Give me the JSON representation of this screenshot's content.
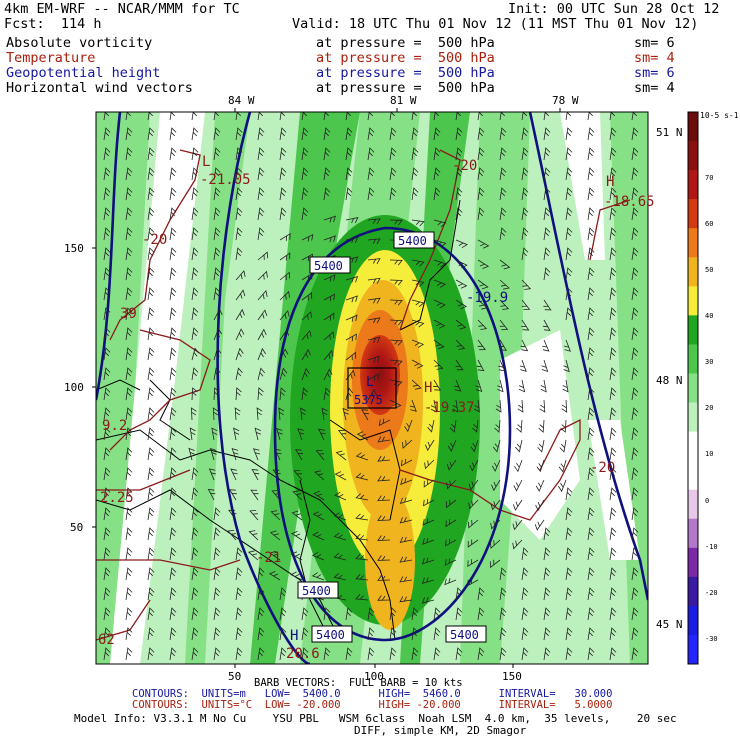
{
  "header": {
    "model": "4km EM-WRF -- NCAR/MMM for TC",
    "init": "Init: 00 UTC Sun 28 Oct 12",
    "fcst": "Fcst:  114 h",
    "valid": "Valid: 18 UTC Thu 01 Nov 12 (11 MST Thu 01 Nov 12)"
  },
  "fields": [
    {
      "name": "Absolute vorticity",
      "level": "at pressure =  500 hPa",
      "sm": "sm= 6",
      "color": "#000000"
    },
    {
      "name": "Temperature",
      "level": "at pressure =  500 hPa",
      "sm": "sm= 4",
      "color": "#a8200d"
    },
    {
      "name": "Geopotential height",
      "level": "at pressure =  500 hPa",
      "sm": "sm= 6",
      "color": "#1515a0"
    },
    {
      "name": "Horizontal wind vectors",
      "level": "at pressure =  500 hPa",
      "sm": "sm= 4",
      "color": "#000000"
    }
  ],
  "axes": {
    "top_labels": [
      "84 W",
      "81 W",
      "78 W"
    ],
    "right_labels": [
      "51 N",
      "48 N",
      "45 N"
    ],
    "left_ticks": [
      "150",
      "100",
      "50"
    ],
    "bottom_ticks": [
      "50",
      "100",
      "150"
    ]
  },
  "colorbar": {
    "unit": "10-5 s-1",
    "ticks": [
      "70",
      "60",
      "50",
      "40",
      "30",
      "20",
      "10",
      "0",
      "-10",
      "-20",
      "-30"
    ],
    "colors": [
      "#6d0c0c",
      "#8a1010",
      "#b01616",
      "#d23a12",
      "#ec7a1a",
      "#f0b41e",
      "#f6ec3a",
      "#21a621",
      "#4cc64c",
      "#86e086",
      "#bcf0bc",
      "#ffffff",
      "#ffffff",
      "#e8c8e8",
      "#b478c8",
      "#7a2aa6",
      "#3a1aa0",
      "#1c1ce0",
      "#2424ff"
    ]
  },
  "labels": {
    "low1": "L",
    "low1_val": "-21.05",
    "high1": "H",
    "high1_val": "-18.65",
    "t20_top": "-20",
    "t20_left": "-20",
    "low_center": "L",
    "low_center_val": "5375",
    "high_right": "H",
    "high_right_val": "-19.37",
    "val_199": "-19.9",
    "val_left_39": "39",
    "val_left_9": "9.2",
    "val_left_25": "2.25",
    "val_left_62": "62",
    "t21": "-21",
    "t20_right": "-20",
    "h_bottom": "H",
    "h_bottom_val": "20.6",
    "box5400_a": "5400",
    "box5400_b": "5400",
    "box5400_c": "5400",
    "box5400_d": "5400",
    "box5400_e": "5400"
  },
  "footer": {
    "barb": "BARB VECTORS:  FULL BARB = 10 kts",
    "contours1": "CONTOURS:  UNITS=m   LOW=  5400.0      HIGH=  5460.0      INTERVAL=   30.000",
    "contours2": "CONTOURS:  UNITS=°C  LOW= -20.000      HIGH= -20.000      INTERVAL=   5.0000",
    "model_info": "Model Info: V3.3.1 M No Cu    YSU PBL   WSM 6class  Noah LSM  4.0 km,  35 levels,    20 sec",
    "diff": "DIFF, simple KM, 2D Smagor"
  }
}
